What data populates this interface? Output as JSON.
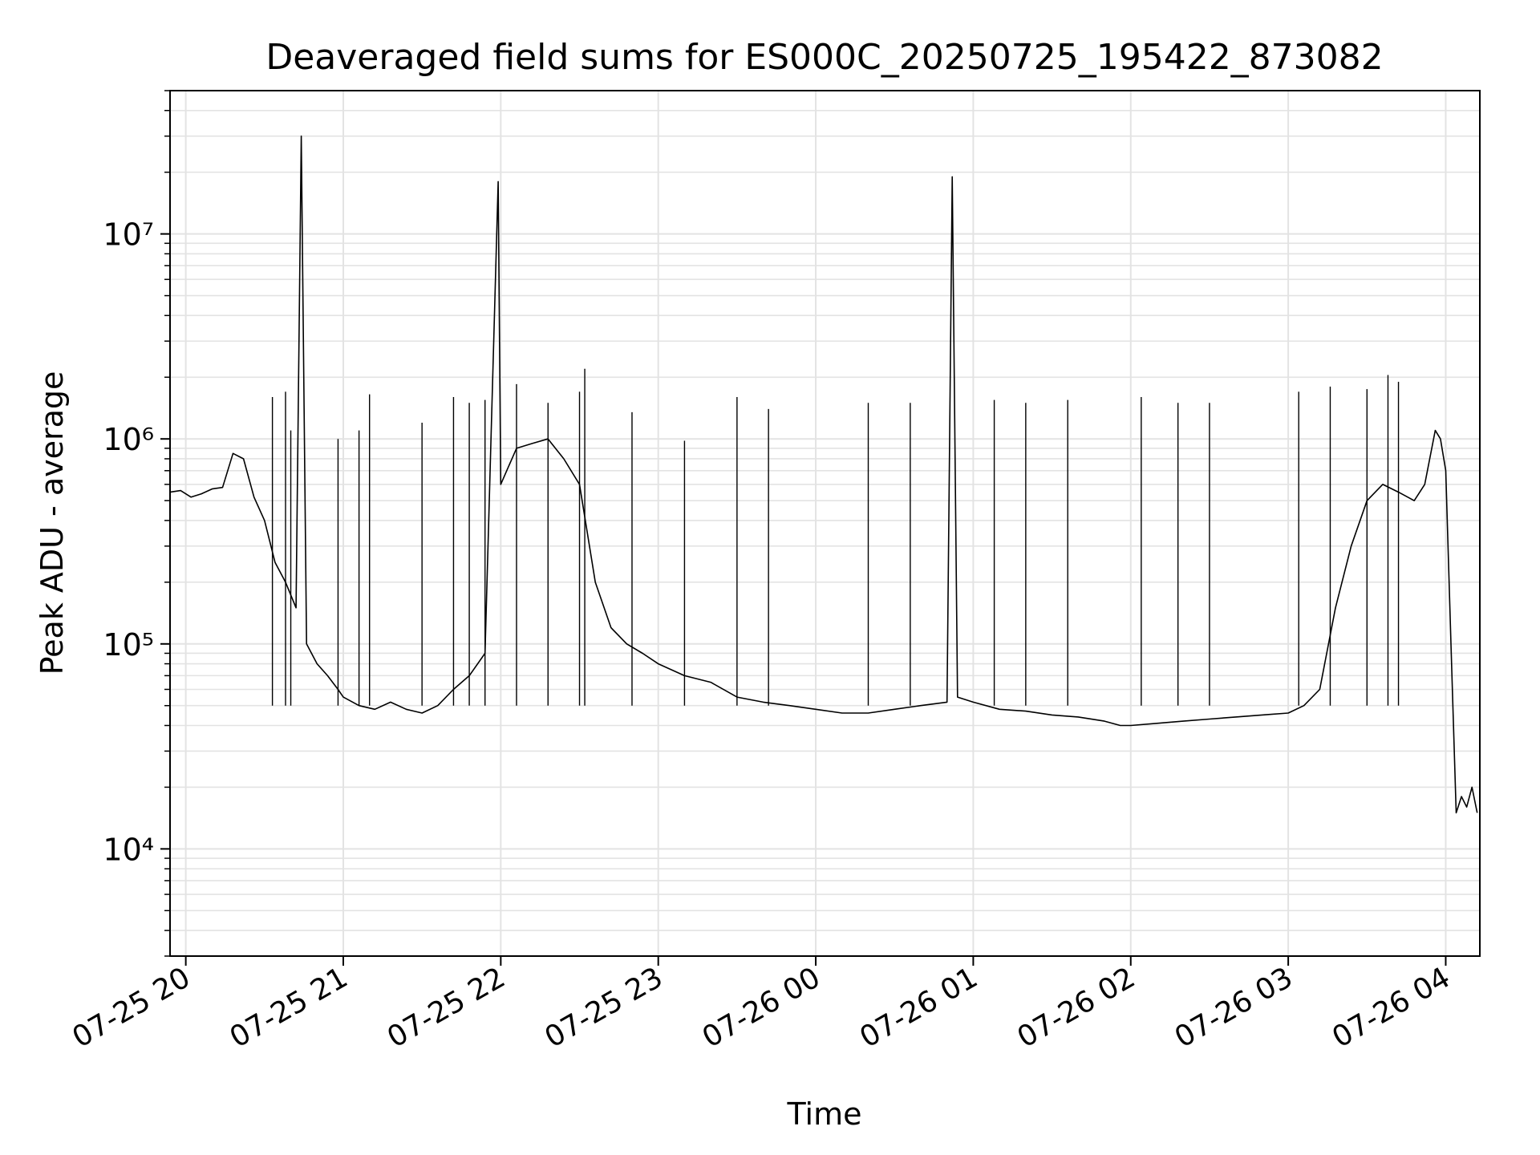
{
  "chart_data": {
    "type": "line",
    "title": "Deaveraged field sums for ES000C_20250725_195422_873082",
    "xlabel": "Time",
    "ylabel": "Peak ADU - average",
    "yscale": "log",
    "ylim": [
      3000,
      50000000
    ],
    "xlim": [
      "2025-07-25 19:54",
      "2025-07-26 04:13"
    ],
    "x_ticks": [
      {
        "t": "2025-07-25 20:00",
        "label": "07-25 20"
      },
      {
        "t": "2025-07-25 21:00",
        "label": "07-25 21"
      },
      {
        "t": "2025-07-25 22:00",
        "label": "07-25 22"
      },
      {
        "t": "2025-07-25 23:00",
        "label": "07-25 23"
      },
      {
        "t": "2025-07-26 00:00",
        "label": "07-26 00"
      },
      {
        "t": "2025-07-26 01:00",
        "label": "07-26 01"
      },
      {
        "t": "2025-07-26 02:00",
        "label": "07-26 02"
      },
      {
        "t": "2025-07-26 03:00",
        "label": "07-26 03"
      },
      {
        "t": "2025-07-26 04:00",
        "label": "07-26 04"
      }
    ],
    "y_ticks": [
      {
        "v": 10000,
        "label": "10⁴"
      },
      {
        "v": 100000,
        "label": "10⁵"
      },
      {
        "v": 1000000,
        "label": "10⁶"
      },
      {
        "v": 10000000,
        "label": "10⁷"
      }
    ],
    "grid": true,
    "line_color": "#000000",
    "series": [
      {
        "x": [
          "2025-07-25 19:54",
          "2025-07-25 19:58",
          "2025-07-25 20:02",
          "2025-07-25 20:06",
          "2025-07-25 20:10",
          "2025-07-25 20:14",
          "2025-07-25 20:18",
          "2025-07-25 20:22",
          "2025-07-25 20:26",
          "2025-07-25 20:30",
          "2025-07-25 20:34",
          "2025-07-25 20:38",
          "2025-07-25 20:42",
          "2025-07-25 20:44",
          "2025-07-25 20:46",
          "2025-07-25 20:50",
          "2025-07-25 20:54",
          "2025-07-25 20:58",
          "2025-07-25 21:00",
          "2025-07-25 21:06",
          "2025-07-25 21:12",
          "2025-07-25 21:18",
          "2025-07-25 21:24",
          "2025-07-25 21:30",
          "2025-07-25 21:36",
          "2025-07-25 21:42",
          "2025-07-25 21:48",
          "2025-07-25 21:54",
          "2025-07-25 21:59",
          "2025-07-25 22:00",
          "2025-07-25 22:06",
          "2025-07-25 22:12",
          "2025-07-25 22:18",
          "2025-07-25 22:24",
          "2025-07-25 22:30",
          "2025-07-25 22:36",
          "2025-07-25 22:42",
          "2025-07-25 22:48",
          "2025-07-25 22:54",
          "2025-07-25 23:00",
          "2025-07-25 23:10",
          "2025-07-25 23:20",
          "2025-07-25 23:30",
          "2025-07-25 23:40",
          "2025-07-25 23:50",
          "2025-07-26 00:00",
          "2025-07-26 00:10",
          "2025-07-26 00:20",
          "2025-07-26 00:30",
          "2025-07-26 00:40",
          "2025-07-26 00:50",
          "2025-07-26 00:52",
          "2025-07-26 00:54",
          "2025-07-26 01:00",
          "2025-07-26 01:10",
          "2025-07-26 01:20",
          "2025-07-26 01:30",
          "2025-07-26 01:40",
          "2025-07-26 01:50",
          "2025-07-26 01:56",
          "2025-07-26 02:00",
          "2025-07-26 02:10",
          "2025-07-26 02:20",
          "2025-07-26 02:30",
          "2025-07-26 02:40",
          "2025-07-26 02:50",
          "2025-07-26 03:00",
          "2025-07-26 03:06",
          "2025-07-26 03:12",
          "2025-07-26 03:18",
          "2025-07-26 03:24",
          "2025-07-26 03:30",
          "2025-07-26 03:36",
          "2025-07-26 03:42",
          "2025-07-26 03:48",
          "2025-07-26 03:52",
          "2025-07-26 03:56",
          "2025-07-26 03:58",
          "2025-07-26 04:00",
          "2025-07-26 04:02",
          "2025-07-26 04:04",
          "2025-07-26 04:06",
          "2025-07-26 04:08",
          "2025-07-26 04:10",
          "2025-07-26 04:12"
        ],
        "y": [
          550000,
          560000,
          520000,
          540000,
          570000,
          580000,
          850000,
          800000,
          520000,
          400000,
          250000,
          200000,
          150000,
          30000000,
          100000,
          80000,
          70000,
          60000,
          55000,
          50000,
          48000,
          52000,
          48000,
          46000,
          50000,
          60000,
          70000,
          90000,
          18000000,
          600000,
          900000,
          950000,
          1000000,
          800000,
          600000,
          200000,
          120000,
          100000,
          90000,
          80000,
          70000,
          65000,
          55000,
          52000,
          50000,
          48000,
          46000,
          46000,
          48000,
          50000,
          52000,
          19000000,
          55000,
          52000,
          48000,
          47000,
          45000,
          44000,
          42000,
          40000,
          40000,
          41000,
          42000,
          43000,
          44000,
          45000,
          46000,
          50000,
          60000,
          150000,
          300000,
          500000,
          600000,
          550000,
          500000,
          600000,
          1100000,
          1000000,
          700000,
          100000,
          15000,
          18000,
          16000,
          20000,
          15000
        ]
      }
    ],
    "spikes": [
      {
        "t": "2025-07-25 20:33",
        "v": 1600000
      },
      {
        "t": "2025-07-25 20:38",
        "v": 1700000
      },
      {
        "t": "2025-07-25 20:40",
        "v": 1100000
      },
      {
        "t": "2025-07-25 20:58",
        "v": 1000000
      },
      {
        "t": "2025-07-25 21:06",
        "v": 1100000
      },
      {
        "t": "2025-07-25 21:10",
        "v": 1650000
      },
      {
        "t": "2025-07-25 21:30",
        "v": 1200000
      },
      {
        "t": "2025-07-25 21:42",
        "v": 1600000
      },
      {
        "t": "2025-07-25 21:48",
        "v": 1500000
      },
      {
        "t": "2025-07-25 21:54",
        "v": 1550000
      },
      {
        "t": "2025-07-25 22:06",
        "v": 1850000
      },
      {
        "t": "2025-07-25 22:18",
        "v": 1500000
      },
      {
        "t": "2025-07-25 22:30",
        "v": 1700000
      },
      {
        "t": "2025-07-25 22:32",
        "v": 2200000
      },
      {
        "t": "2025-07-25 22:50",
        "v": 1350000
      },
      {
        "t": "2025-07-25 23:10",
        "v": 980000
      },
      {
        "t": "2025-07-25 23:30",
        "v": 1600000
      },
      {
        "t": "2025-07-25 23:42",
        "v": 1400000
      },
      {
        "t": "2025-07-26 00:20",
        "v": 1500000
      },
      {
        "t": "2025-07-26 00:36",
        "v": 1500000
      },
      {
        "t": "2025-07-26 01:08",
        "v": 1550000
      },
      {
        "t": "2025-07-26 01:20",
        "v": 1500000
      },
      {
        "t": "2025-07-26 01:36",
        "v": 1550000
      },
      {
        "t": "2025-07-26 02:04",
        "v": 1600000
      },
      {
        "t": "2025-07-26 02:18",
        "v": 1500000
      },
      {
        "t": "2025-07-26 02:30",
        "v": 1500000
      },
      {
        "t": "2025-07-26 03:04",
        "v": 1700000
      },
      {
        "t": "2025-07-26 03:16",
        "v": 1800000
      },
      {
        "t": "2025-07-26 03:30",
        "v": 1750000
      },
      {
        "t": "2025-07-26 03:38",
        "v": 2050000
      },
      {
        "t": "2025-07-26 03:42",
        "v": 1900000
      }
    ]
  }
}
